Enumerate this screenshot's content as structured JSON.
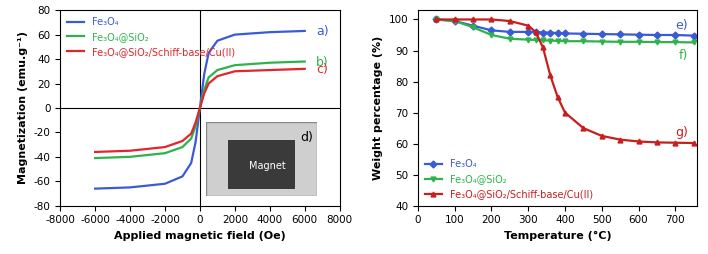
{
  "chart_data": [
    {
      "type": "line",
      "x_label": "Applied magnetic field (Oe)",
      "y_label": "Magnetization (emu.g⁻¹)",
      "xlim": [
        -8000,
        8000
      ],
      "xticks": [
        -8000,
        -6000,
        -4000,
        -2000,
        0,
        2000,
        4000,
        6000,
        8000
      ],
      "ylim": [
        -80,
        80
      ],
      "yticks": [
        -80,
        -60,
        -40,
        -20,
        0,
        20,
        40,
        60,
        80
      ],
      "legend": "upper left",
      "x": [
        -6000,
        -4000,
        -2000,
        -1000,
        -500,
        -250,
        0,
        250,
        500,
        1000,
        2000,
        4000,
        6000
      ],
      "series": [
        {
          "name": "Fe₃O₄",
          "color": "#3b5bd6",
          "line_style": "solid",
          "values": [
            -66,
            -65,
            -62,
            -56,
            -45,
            -28,
            0,
            28,
            45,
            55,
            60,
            62,
            63
          ]
        },
        {
          "name": "Fe₃O₄@SiO₂",
          "color": "#2eb34a",
          "line_style": "solid",
          "values": [
            -41,
            -40,
            -37,
            -32,
            -25,
            -15,
            0,
            15,
            25,
            31,
            35,
            37,
            38
          ]
        },
        {
          "name": "Fe₃O₄@SiO₂/Schiff-base/Cu(II)",
          "color": "#e0262b",
          "line_style": "solid",
          "values": [
            -36,
            -35,
            -32,
            -27,
            -21,
            -12,
            0,
            12,
            20,
            26,
            30,
            31,
            32
          ]
        }
      ],
      "annotations": [
        "a)",
        "b)",
        "c)",
        "d)",
        "Magnet"
      ]
    },
    {
      "type": "line",
      "x_label": "Temperature (°C)",
      "y_label": "Weight percentage (%)",
      "xlim": [
        0,
        760
      ],
      "xticks": [
        0,
        100,
        200,
        300,
        400,
        500,
        600,
        700
      ],
      "ylim": [
        40,
        103
      ],
      "yticks": [
        40,
        50,
        60,
        70,
        80,
        90,
        100
      ],
      "legend": "lower left",
      "x": [
        50,
        100,
        150,
        200,
        250,
        300,
        320,
        340,
        360,
        380,
        400,
        450,
        500,
        550,
        600,
        650,
        700,
        750
      ],
      "series": [
        {
          "name": "Fe₃O₄",
          "color": "#3b5bd6",
          "marker": "D",
          "line_style": "solid",
          "values": [
            100,
            99.5,
            98,
            96.5,
            96,
            96,
            96,
            95.8,
            95.8,
            95.6,
            95.5,
            95.4,
            95.3,
            95.2,
            95.1,
            95,
            95,
            94.8
          ]
        },
        {
          "name": "Fe₃O₄@SiO₂",
          "color": "#2eb34a",
          "marker": "v",
          "line_style": "solid",
          "values": [
            100,
            99.5,
            97.5,
            95,
            93.8,
            93.5,
            93.4,
            93.3,
            93.2,
            93.1,
            93,
            93,
            92.9,
            92.8,
            92.8,
            92.7,
            92.7,
            92.6
          ]
        },
        {
          "name": "Fe₃O₄@SiO₂/Schiff-base/Cu(II)",
          "color": "#c81e1e",
          "marker": "^",
          "line_style": "solid",
          "values": [
            100,
            100,
            100,
            100,
            99.5,
            98,
            96,
            91,
            82,
            75,
            70,
            65,
            62.5,
            61.3,
            60.7,
            60.4,
            60.3,
            60.2
          ]
        }
      ],
      "annotations": [
        "e)",
        "f)",
        "g)"
      ]
    }
  ]
}
